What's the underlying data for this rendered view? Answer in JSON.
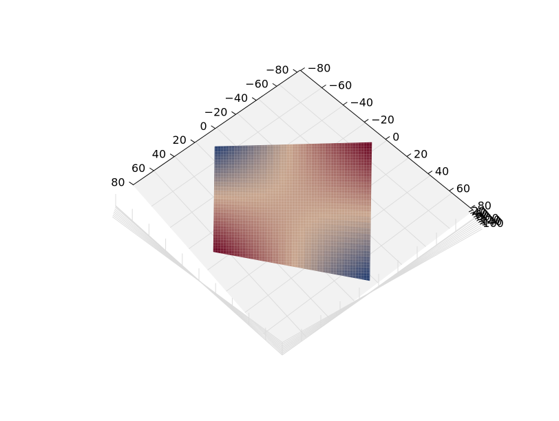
{
  "chart_data": {
    "type": "surface3d",
    "title": "",
    "xlabel": "",
    "ylabel": "",
    "zlabel": "",
    "grid": true,
    "colormap": "RdBu",
    "x_ticks": [
      "−80",
      "−60",
      "−40",
      "−20",
      "0",
      "20",
      "40",
      "60",
      "80"
    ],
    "y_ticks": [
      "−80",
      "−60",
      "−40",
      "−20",
      "0",
      "20",
      "40",
      "60",
      "80"
    ],
    "z_ticks": [
      "20",
      "40",
      "60",
      "80",
      "100",
      "120",
      "140",
      "160"
    ],
    "xlim": [
      -80,
      80
    ],
    "ylim": [
      -80,
      80
    ],
    "zlim": [
      20,
      160
    ],
    "surface": {
      "corner_values": {
        "back_left": "high",
        "front_left": "low",
        "front_right": "high",
        "back_right": "low"
      }
    }
  },
  "colors": {
    "pane": "#f2f2f2",
    "pane_grid": "#dcdcdc",
    "axis": "#000000",
    "surface_high": "#67001f",
    "surface_mid": "#c9a78f",
    "surface_low": "#0b2d6b"
  }
}
